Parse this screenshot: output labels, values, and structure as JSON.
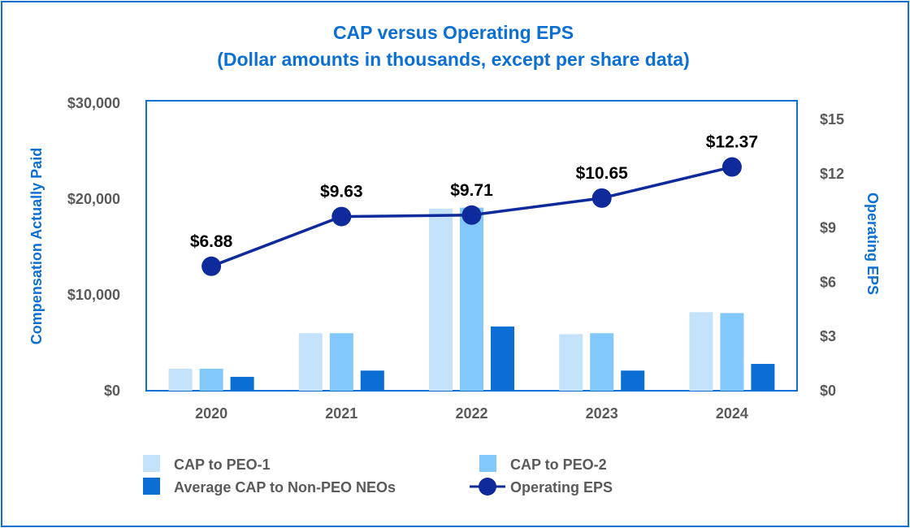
{
  "chart_data": {
    "type": "bar",
    "title": "CAP versus Operating EPS",
    "subtitle": "(Dollar amounts in thousands, except per share data)",
    "categories": [
      "2020",
      "2021",
      "2022",
      "2023",
      "2024"
    ],
    "ylabel": "Compensation Actually Paid",
    "y2label": "Operating EPS",
    "ylim": [
      0,
      30000
    ],
    "y2lim": [
      0,
      16
    ],
    "yticks": [
      "$0",
      "$10,000",
      "$20,000",
      "$30,000"
    ],
    "y2ticks": [
      "$0",
      "$3",
      "$6",
      "$9",
      "$12",
      "$15"
    ],
    "y_tick_values": [
      0,
      10000,
      20000,
      30000
    ],
    "y2_tick_values": [
      0,
      3,
      6,
      9,
      12,
      15
    ],
    "series": [
      {
        "name": "CAP to PEO-1",
        "type": "bar",
        "color": "#c4e3fb",
        "values": [
          2300,
          6000,
          19000,
          5900,
          8200
        ]
      },
      {
        "name": "CAP to PEO-2",
        "type": "bar",
        "color": "#82c8fb",
        "values": [
          2300,
          6000,
          19100,
          6000,
          8100
        ]
      },
      {
        "name": "Average CAP to Non-PEO NEOs",
        "type": "bar",
        "color": "#0a6ed4",
        "values": [
          1450,
          2100,
          6700,
          2100,
          2800
        ]
      },
      {
        "name": "Operating EPS",
        "type": "line",
        "axis": "y2",
        "color": "#0f2a9b",
        "values": [
          6.88,
          9.63,
          9.71,
          10.65,
          12.37
        ],
        "labels": [
          "$6.88",
          "$9.63",
          "$9.71",
          "$10.65",
          "$12.37"
        ]
      }
    ],
    "legend": {
      "position": "bottom"
    }
  },
  "colors": {
    "accent": "#0b6fd3",
    "tick": "#5a5a5a",
    "line": "#0f2a9b"
  }
}
